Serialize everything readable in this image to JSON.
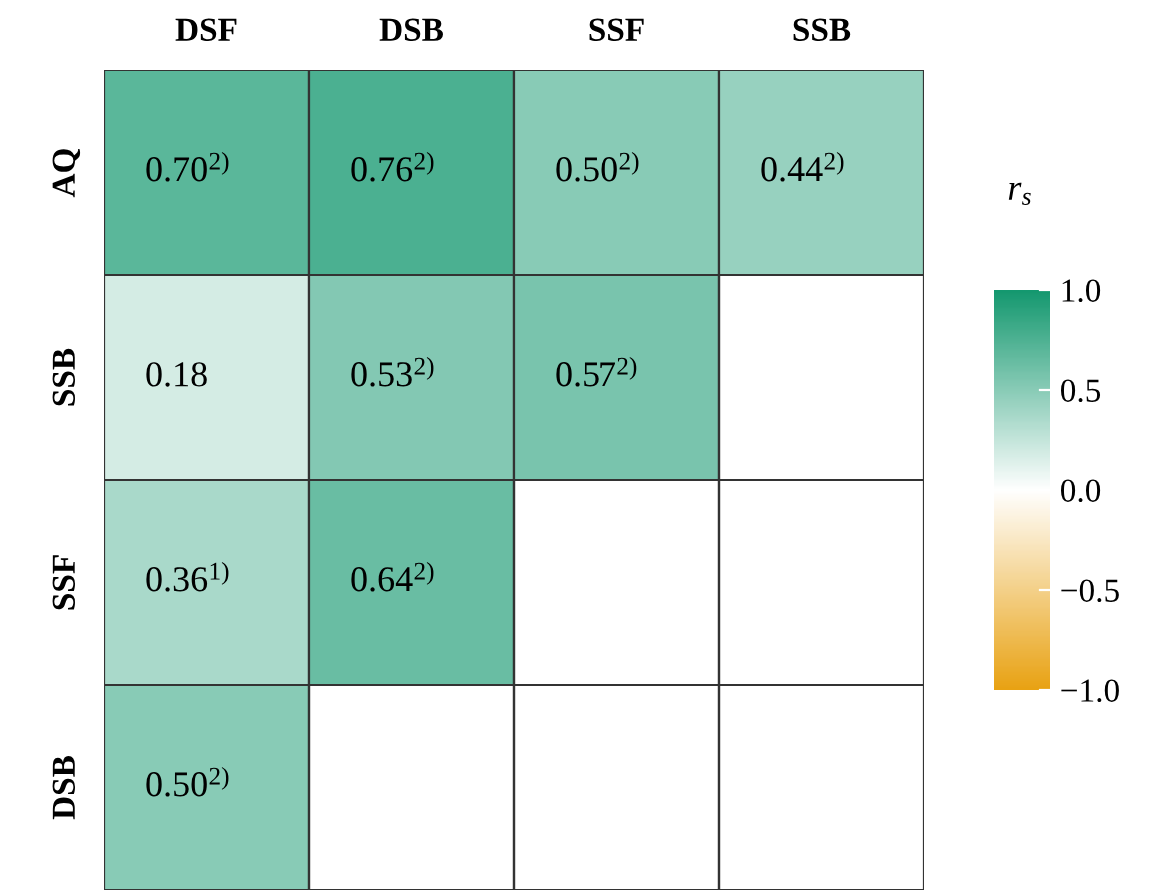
{
  "chart_data": {
    "type": "heatmap",
    "categories": [
      "DSF",
      "DSB",
      "SSF",
      "SSB"
    ],
    "y_categories": [
      "AQ",
      "SSB",
      "SSF",
      "DSB"
    ],
    "cells": [
      [
        0.7,
        0.76,
        0.5,
        0.44
      ],
      [
        0.18,
        0.53,
        0.57,
        null
      ],
      [
        0.36,
        0.64,
        null,
        null
      ],
      [
        0.5,
        null,
        null,
        null
      ]
    ],
    "cell_labels": [
      [
        "0.70$^{2)}$",
        "0.76$^{2)}$",
        "0.50$^{2)}$",
        "0.44$^{2)}$"
      ],
      [
        "0.18",
        "0.53$^{2)}$",
        "0.57$^{2)}$",
        null
      ],
      [
        "0.36$^{1)}$",
        "0.64$^{2)}$",
        null,
        null
      ],
      [
        "0.50$^{2)}$",
        null,
        null,
        null
      ]
    ],
    "clabel": "r$_{s}$",
    "clim": [
      -1,
      1
    ],
    "cticks": [
      {
        "value": -1,
        "label": "−1.0"
      },
      {
        "value": -0.5,
        "label": "−0.5"
      },
      {
        "value": 0,
        "label": "0.0"
      },
      {
        "value": 0.5,
        "label": "0.5"
      },
      {
        "value": 1,
        "label": "1.0"
      }
    ],
    "colors": [
      "#e8a213",
      "#ffffff",
      "#14986f"
    ]
  }
}
